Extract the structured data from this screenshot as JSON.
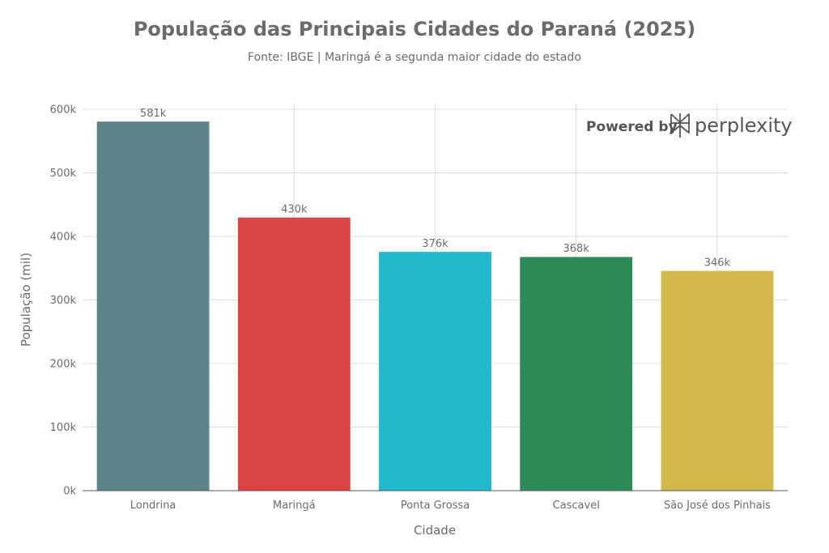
{
  "chart_data": {
    "type": "bar",
    "title": "População das Principais Cidades do Paraná (2025)",
    "subtitle": "Fonte: IBGE | Maringá é a segunda maior cidade do estado",
    "xlabel": "Cidade",
    "ylabel": "População (mil)",
    "categories": [
      "Londrina",
      "Maringá",
      "Ponta Grossa",
      "Cascavel",
      "São José dos Pinhais"
    ],
    "values": [
      581,
      430,
      376,
      368,
      346
    ],
    "data_labels": [
      "581k",
      "430k",
      "376k",
      "368k",
      "346k"
    ],
    "colors": [
      "#5d868a",
      "#db4444",
      "#21b9ce",
      "#2e8b57",
      "#d3b84b"
    ],
    "ylim": [
      0,
      600
    ],
    "yticks": [
      0,
      100,
      200,
      300,
      400,
      500,
      600
    ],
    "ytick_labels": [
      "0k",
      "100k",
      "200k",
      "300k",
      "400k",
      "500k",
      "600k"
    ],
    "grid": true,
    "legend": "none"
  },
  "watermark": {
    "prefix": "Powered by",
    "brand": "perplexity",
    "icon": "perplexity-logo-icon"
  }
}
